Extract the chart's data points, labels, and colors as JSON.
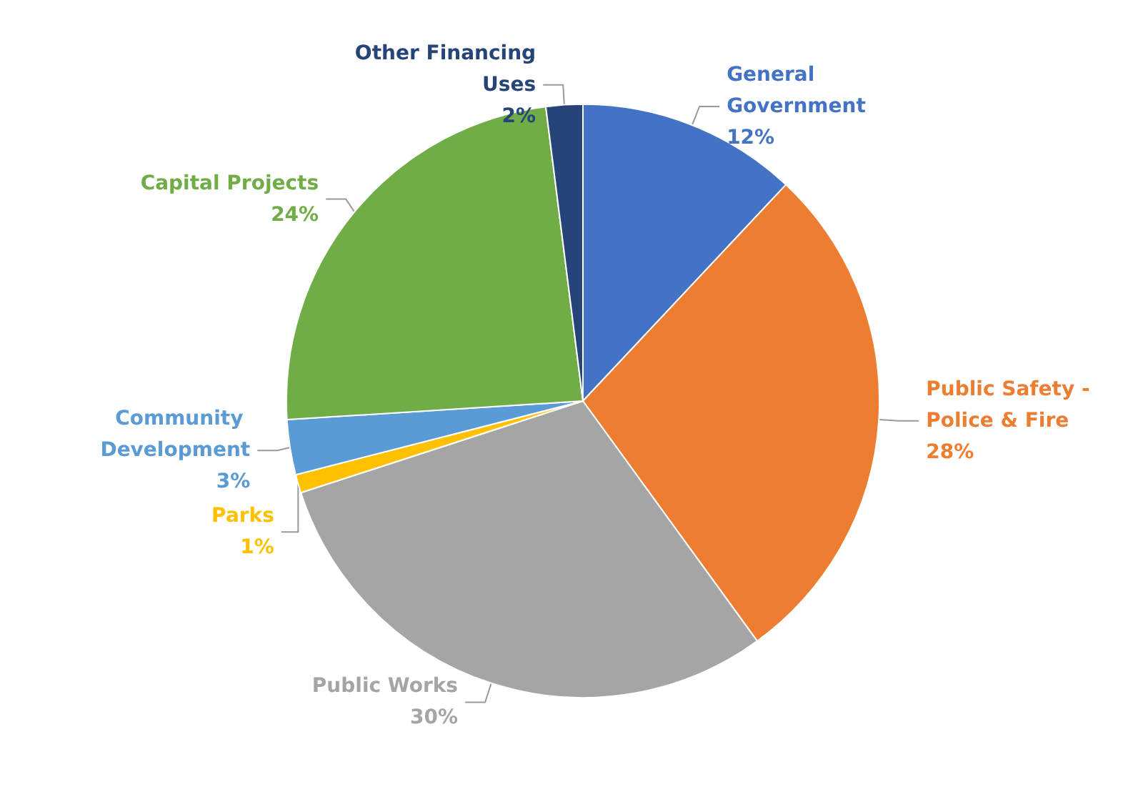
{
  "chart_data": {
    "type": "pie",
    "categories": [
      "General Government",
      "Public Safety - Police & Fire",
      "Public Works",
      "Parks",
      "Community Development",
      "Capital Projects",
      "Other Financing Uses"
    ],
    "values": [
      12,
      28,
      30,
      1,
      3,
      24,
      2
    ],
    "value_labels": [
      "12%",
      "28%",
      "30%",
      "1%",
      "3%",
      "24%",
      "2%"
    ],
    "colors": [
      "#4472c4",
      "#ed7d31",
      "#a5a5a5",
      "#ffc000",
      "#5b9bd5",
      "#70ad47",
      "#264478"
    ],
    "legend": false
  }
}
